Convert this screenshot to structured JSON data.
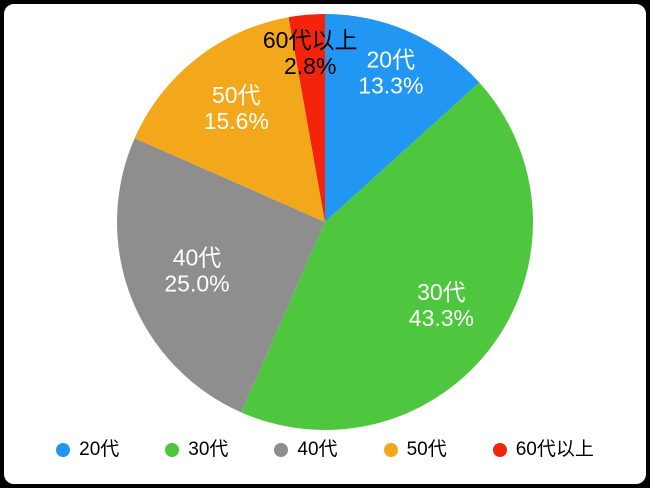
{
  "chart_data": {
    "type": "pie",
    "title": "",
    "categories": [
      "20代",
      "30代",
      "40代",
      "50代",
      "60代以上"
    ],
    "values": [
      13.3,
      43.3,
      25.0,
      15.6,
      2.8
    ],
    "value_labels": [
      "13.3%",
      "43.3%",
      "25.0%",
      "15.6%",
      "2.8%"
    ],
    "colors": [
      "#2196f3",
      "#4ec73f",
      "#8e8e8e",
      "#f3a81b",
      "#f3230c"
    ],
    "label_colors": [
      "#ffffff",
      "#ffffff",
      "#ffffff",
      "#ffffff",
      "#000000"
    ],
    "label_radius": [
      0.78,
      0.69,
      0.66,
      0.69,
      0.81
    ],
    "start_angle_deg": 0,
    "direction": "clockwise",
    "legend_position": "bottom",
    "legend": [
      "20代",
      "30代",
      "40代",
      "50代",
      "60代以上"
    ]
  }
}
